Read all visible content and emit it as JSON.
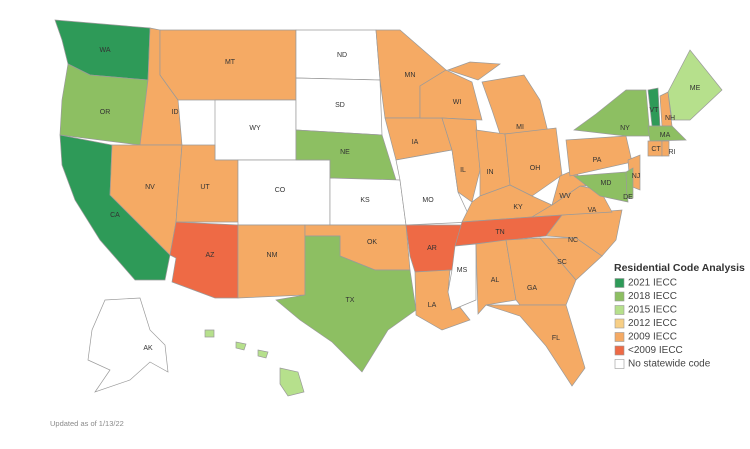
{
  "legend": {
    "title": "Residential Code Analysis",
    "entries": [
      {
        "label": "2021 IECC",
        "color": "#2e9a58"
      },
      {
        "label": "2018 IECC",
        "color": "#8dbf62"
      },
      {
        "label": "2015 IECC",
        "color": "#b6e08c"
      },
      {
        "label": "2012 IECC",
        "color": "#f7cf86"
      },
      {
        "label": "2009 IECC",
        "color": "#f5aa64"
      },
      {
        "label": "<2009 IECC",
        "color": "#ee6a45"
      },
      {
        "label": "No statewide code",
        "color": "#ffffff"
      }
    ]
  },
  "states": [
    {
      "label": "WA",
      "code": "2021 IECC"
    },
    {
      "label": "OR",
      "code": "2018 IECC"
    },
    {
      "label": "CA",
      "code": "2021 IECC"
    },
    {
      "label": "ID",
      "code": "2009 IECC"
    },
    {
      "label": "NV",
      "code": "2009 IECC"
    },
    {
      "label": "MT",
      "code": "2009 IECC"
    },
    {
      "label": "WY",
      "code": "No statewide code"
    },
    {
      "label": "UT",
      "code": "2009 IECC"
    },
    {
      "label": "CO",
      "code": "No statewide code"
    },
    {
      "label": "AZ",
      "code": "<2009 IECC"
    },
    {
      "label": "NM",
      "code": "2009 IECC"
    },
    {
      "label": "ND",
      "code": "No statewide code"
    },
    {
      "label": "SD",
      "code": "No statewide code"
    },
    {
      "label": "NE",
      "code": "2018 IECC"
    },
    {
      "label": "KS",
      "code": "No statewide code"
    },
    {
      "label": "OK",
      "code": "2009 IECC"
    },
    {
      "label": "TX",
      "code": "2018 IECC"
    },
    {
      "label": "MN",
      "code": "2009 IECC"
    },
    {
      "label": "IA",
      "code": "2009 IECC"
    },
    {
      "label": "MO",
      "code": "No statewide code"
    },
    {
      "label": "AR",
      "code": "<2009 IECC"
    },
    {
      "label": "LA",
      "code": "2009 IECC"
    },
    {
      "label": "WI",
      "code": "2009 IECC"
    },
    {
      "label": "IL",
      "code": "2009 IECC"
    },
    {
      "label": "MI",
      "code": "2009 IECC"
    },
    {
      "label": "IN",
      "code": "2009 IECC"
    },
    {
      "label": "OH",
      "code": "2009 IECC"
    },
    {
      "label": "KY",
      "code": "2009 IECC"
    },
    {
      "label": "TN",
      "code": "<2009 IECC"
    },
    {
      "label": "MS",
      "code": "No statewide code"
    },
    {
      "label": "AL",
      "code": "2009 IECC"
    },
    {
      "label": "GA",
      "code": "2009 IECC"
    },
    {
      "label": "FL",
      "code": "2009 IECC"
    },
    {
      "label": "SC",
      "code": "2009 IECC"
    },
    {
      "label": "NC",
      "code": "2009 IECC"
    },
    {
      "label": "VA",
      "code": "2009 IECC"
    },
    {
      "label": "WV",
      "code": "2009 IECC"
    },
    {
      "label": "PA",
      "code": "2009 IECC"
    },
    {
      "label": "NY",
      "code": "2018 IECC"
    },
    {
      "label": "NJ",
      "code": "2009 IECC"
    },
    {
      "label": "MD",
      "code": "2018 IECC"
    },
    {
      "label": "DE",
      "code": "2018 IECC"
    },
    {
      "label": "VT",
      "code": "2021 IECC"
    },
    {
      "label": "NH",
      "code": "2009 IECC"
    },
    {
      "label": "ME",
      "code": "2015 IECC"
    },
    {
      "label": "MA",
      "code": "2018 IECC"
    },
    {
      "label": "CT",
      "code": "2009 IECC"
    },
    {
      "label": "RI",
      "code": "2009 IECC"
    },
    {
      "label": "AK",
      "code": "No statewide code"
    },
    {
      "code": "2015 IECC"
    }
  ],
  "footnote": "Updated as of 1/13/22"
}
